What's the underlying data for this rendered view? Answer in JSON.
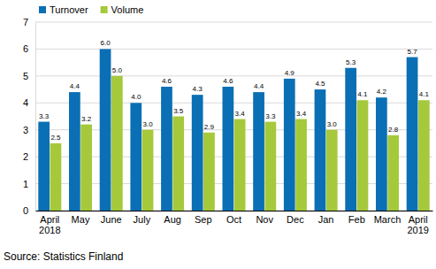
{
  "chart_data": {
    "type": "bar",
    "categories": [
      "April 2018",
      "May",
      "June",
      "July",
      "Aug",
      "Sep",
      "Oct",
      "Nov",
      "Dec",
      "Jan",
      "Feb",
      "March",
      "April 2019"
    ],
    "series": [
      {
        "name": "Turnover",
        "color": "#0a6fb4",
        "values": [
          3.3,
          4.4,
          6.0,
          4.0,
          4.6,
          4.3,
          4.6,
          4.4,
          4.9,
          4.5,
          5.3,
          4.2,
          5.7
        ],
        "value_labels": [
          "3.3",
          "4.4",
          "6.0",
          "4.0",
          "4.6",
          "4.3",
          "4.6",
          "4.4",
          "4.9",
          "4.5",
          "5.3",
          "4.2",
          "5.7"
        ]
      },
      {
        "name": "Volume",
        "color": "#a5c93b",
        "values": [
          2.5,
          3.2,
          5.0,
          3.0,
          3.5,
          2.9,
          3.4,
          3.3,
          3.4,
          3.0,
          4.1,
          2.8,
          4.1
        ],
        "value_labels": [
          "2.5",
          "3.2",
          "5.0",
          "3.0",
          "3.5",
          "2.9",
          "3.4",
          "3.3",
          "3.4",
          "3.0",
          "4.1",
          "2.8",
          "4.1"
        ]
      }
    ],
    "ylim": [
      0,
      7
    ],
    "yticks": [
      0,
      1,
      2,
      3,
      4,
      5,
      6,
      7
    ],
    "grid": true,
    "legend": "top-left",
    "data_labels": true,
    "source": "Source: Statistics Finland"
  }
}
